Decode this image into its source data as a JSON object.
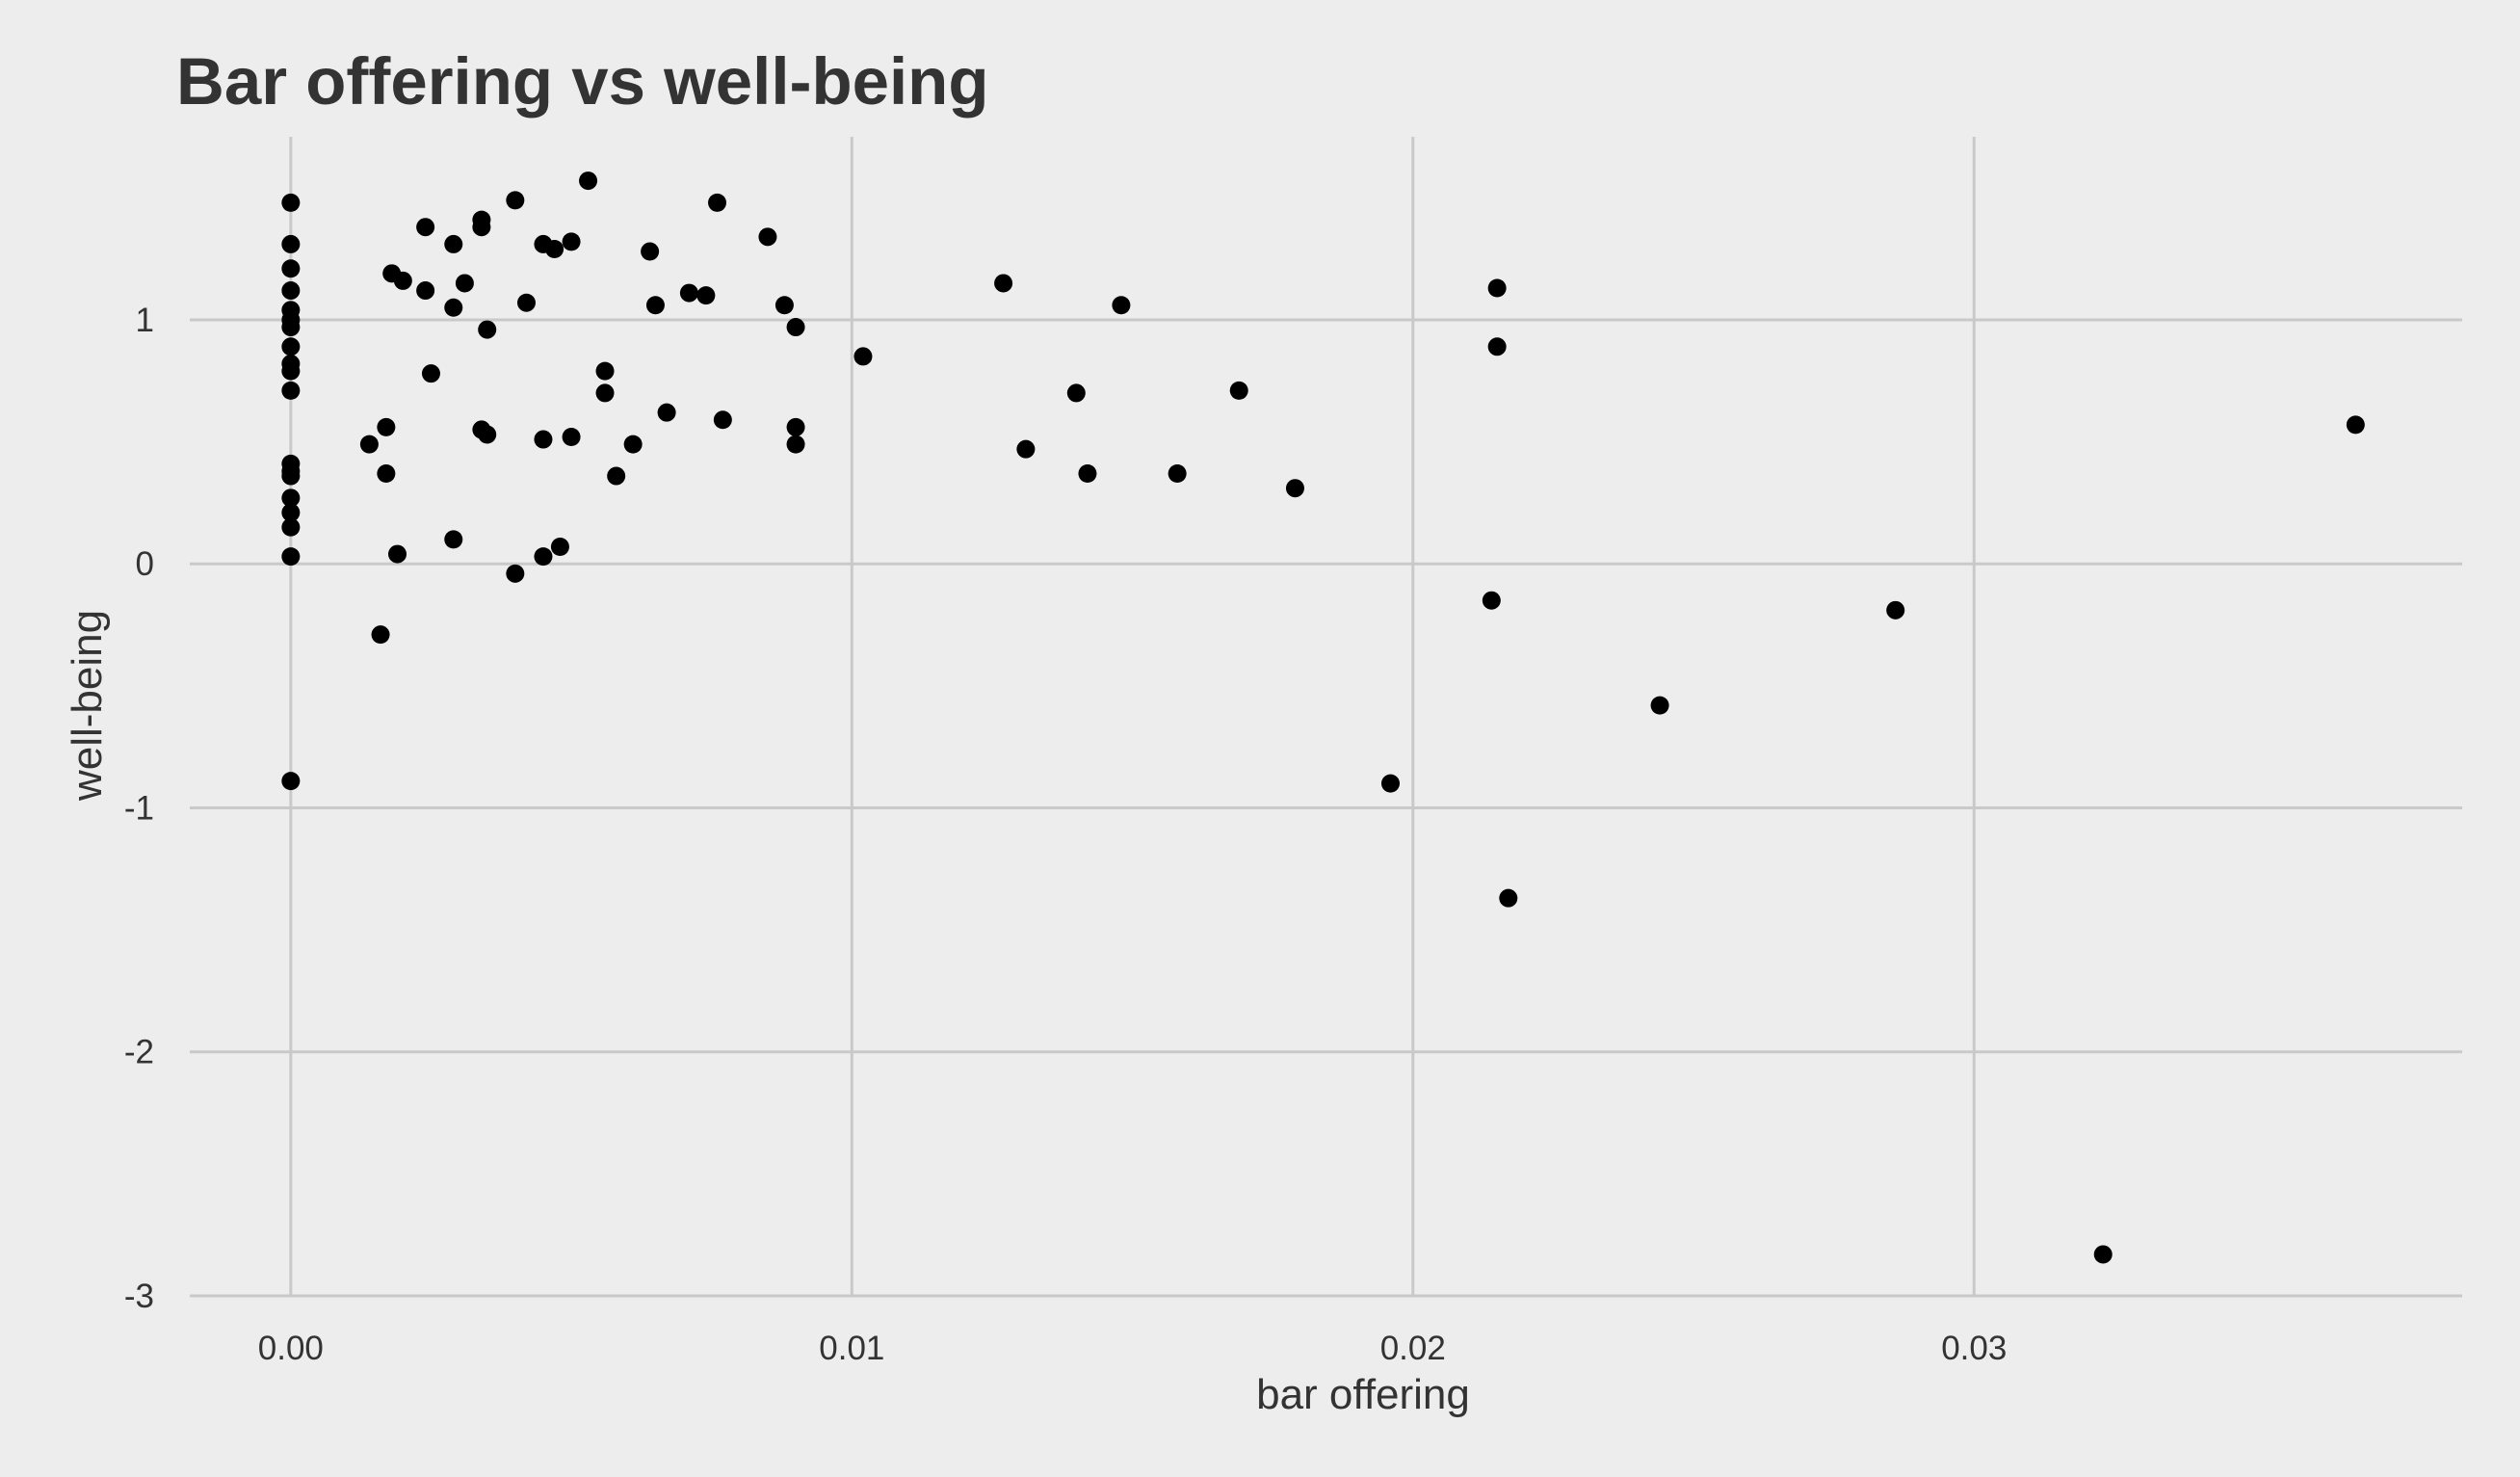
{
  "chart_data": {
    "type": "scatter",
    "title": "Bar offering vs well-being",
    "xlabel": "bar offering",
    "ylabel": "well-being",
    "xlim": [
      -0.0018,
      0.0387
    ],
    "ylim": [
      -3.0,
      1.75
    ],
    "x_ticks": [
      0.0,
      0.01,
      0.02,
      0.03
    ],
    "x_tick_labels": [
      "0.00",
      "0.01",
      "0.02",
      "0.03"
    ],
    "y_ticks": [
      1,
      0,
      -1,
      -2,
      -3
    ],
    "y_tick_labels": [
      "1",
      "0",
      "-1",
      "-2",
      "-3"
    ],
    "grid": true,
    "legend": "none",
    "point_color": "#000000",
    "background_color": "#ededed",
    "grid_color": "#c9c9c9",
    "points": [
      {
        "x": 0.0,
        "y": 1.48
      },
      {
        "x": 0.0,
        "y": 1.31
      },
      {
        "x": 0.0,
        "y": 1.21
      },
      {
        "x": 0.0,
        "y": 1.12
      },
      {
        "x": 0.0,
        "y": 1.04
      },
      {
        "x": 0.0,
        "y": 1.0
      },
      {
        "x": 0.0,
        "y": 0.97
      },
      {
        "x": 0.0,
        "y": 0.89
      },
      {
        "x": 0.0,
        "y": 0.82
      },
      {
        "x": 0.0,
        "y": 0.79
      },
      {
        "x": 0.0,
        "y": 0.71
      },
      {
        "x": 0.0,
        "y": 0.41
      },
      {
        "x": 0.0,
        "y": 0.38
      },
      {
        "x": 0.0,
        "y": 0.36
      },
      {
        "x": 0.0,
        "y": 0.27
      },
      {
        "x": 0.0,
        "y": 0.21
      },
      {
        "x": 0.0,
        "y": 0.15
      },
      {
        "x": 0.0,
        "y": 0.03
      },
      {
        "x": 0.0,
        "y": -0.89
      },
      {
        "x": 0.0014,
        "y": 0.49
      },
      {
        "x": 0.0016,
        "y": -0.29
      },
      {
        "x": 0.0017,
        "y": 0.56
      },
      {
        "x": 0.0017,
        "y": 0.37
      },
      {
        "x": 0.0018,
        "y": 1.19
      },
      {
        "x": 0.0019,
        "y": 0.04
      },
      {
        "x": 0.002,
        "y": 1.16
      },
      {
        "x": 0.0024,
        "y": 1.38
      },
      {
        "x": 0.0024,
        "y": 1.12
      },
      {
        "x": 0.0025,
        "y": 0.78
      },
      {
        "x": 0.0029,
        "y": 1.31
      },
      {
        "x": 0.0029,
        "y": 1.05
      },
      {
        "x": 0.0029,
        "y": 0.1
      },
      {
        "x": 0.0031,
        "y": 1.15
      },
      {
        "x": 0.0034,
        "y": 1.41
      },
      {
        "x": 0.0034,
        "y": 1.38
      },
      {
        "x": 0.0034,
        "y": 0.55
      },
      {
        "x": 0.0035,
        "y": 0.96
      },
      {
        "x": 0.0035,
        "y": 0.53
      },
      {
        "x": 0.004,
        "y": 1.49
      },
      {
        "x": 0.004,
        "y": -0.04
      },
      {
        "x": 0.0042,
        "y": 1.07
      },
      {
        "x": 0.0045,
        "y": 1.31
      },
      {
        "x": 0.0045,
        "y": 0.51
      },
      {
        "x": 0.0045,
        "y": 0.03
      },
      {
        "x": 0.0047,
        "y": 1.29
      },
      {
        "x": 0.0048,
        "y": 0.07
      },
      {
        "x": 0.005,
        "y": 1.32
      },
      {
        "x": 0.005,
        "y": 0.52
      },
      {
        "x": 0.0053,
        "y": 1.57
      },
      {
        "x": 0.0056,
        "y": 0.79
      },
      {
        "x": 0.0056,
        "y": 0.7
      },
      {
        "x": 0.0058,
        "y": 0.36
      },
      {
        "x": 0.0061,
        "y": 0.49
      },
      {
        "x": 0.0064,
        "y": 1.28
      },
      {
        "x": 0.0065,
        "y": 1.06
      },
      {
        "x": 0.0067,
        "y": 0.62
      },
      {
        "x": 0.0071,
        "y": 1.11
      },
      {
        "x": 0.0074,
        "y": 1.1
      },
      {
        "x": 0.0076,
        "y": 1.48
      },
      {
        "x": 0.0077,
        "y": 0.59
      },
      {
        "x": 0.0085,
        "y": 1.34
      },
      {
        "x": 0.0088,
        "y": 1.06
      },
      {
        "x": 0.009,
        "y": 0.97
      },
      {
        "x": 0.009,
        "y": 0.56
      },
      {
        "x": 0.009,
        "y": 0.49
      },
      {
        "x": 0.0102,
        "y": 0.85
      },
      {
        "x": 0.0127,
        "y": 1.15
      },
      {
        "x": 0.0131,
        "y": 0.47
      },
      {
        "x": 0.014,
        "y": 0.7
      },
      {
        "x": 0.0142,
        "y": 0.37
      },
      {
        "x": 0.0148,
        "y": 1.06
      },
      {
        "x": 0.0158,
        "y": 0.37
      },
      {
        "x": 0.0169,
        "y": 0.71
      },
      {
        "x": 0.0179,
        "y": 0.31
      },
      {
        "x": 0.0196,
        "y": -0.9
      },
      {
        "x": 0.0214,
        "y": -0.15
      },
      {
        "x": 0.0215,
        "y": 1.13
      },
      {
        "x": 0.0215,
        "y": 0.89
      },
      {
        "x": 0.0217,
        "y": -1.37
      },
      {
        "x": 0.0244,
        "y": -0.58
      },
      {
        "x": 0.0286,
        "y": -0.19
      },
      {
        "x": 0.0323,
        "y": -2.83
      },
      {
        "x": 0.0368,
        "y": 0.57
      }
    ]
  }
}
